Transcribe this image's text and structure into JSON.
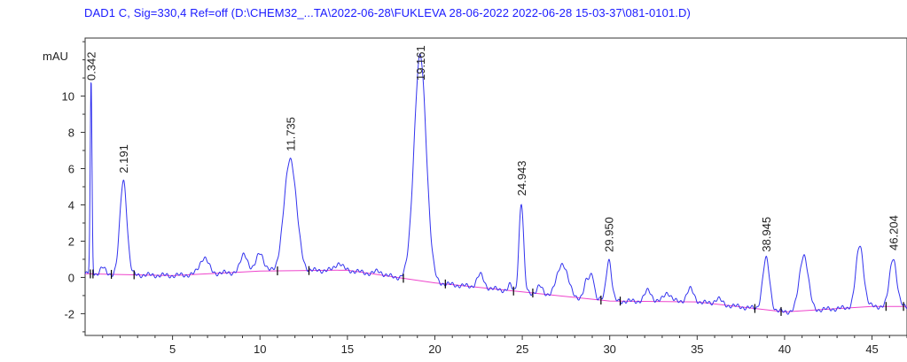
{
  "chart_data": {
    "type": "line",
    "title": "DAD1 C, Sig=330,4 Ref=off (D:\\CHEM32_...TA\\2022-06-28\\FUKLEVA  28-06-2022 2022-06-28 15-03-37\\081-0101.D)",
    "xlabel": "",
    "ylabel": "mAU",
    "xlim": [
      0,
      47
    ],
    "ylim": [
      -3.2,
      13.2
    ],
    "x_ticks": [
      5,
      10,
      15,
      20,
      25,
      30,
      35,
      40,
      45
    ],
    "y_ticks": [
      -2,
      0,
      2,
      4,
      6,
      8,
      10
    ],
    "grid": false,
    "line_color": "#3333ee",
    "baseline_color": "#ee44cc",
    "marker_color": "#000000",
    "label_color": "#222222",
    "baseline": {
      "x": [
        0,
        5,
        10,
        15,
        20,
        25,
        30,
        35,
        40,
        45,
        47
      ],
      "y": [
        0.2,
        0.1,
        0.35,
        0.4,
        -0.3,
        -0.8,
        -1.3,
        -1.35,
        -1.9,
        -1.6,
        -1.6
      ]
    },
    "peaks": [
      {
        "rt": 0.342,
        "label": "0.342",
        "height": 10.6,
        "width": 0.05
      },
      {
        "rt": 2.191,
        "label": "2.191",
        "height": 5.2,
        "width": 0.2
      },
      {
        "rt": 11.735,
        "label": "11.735",
        "height": 6.2,
        "width": 0.35
      },
      {
        "rt": 19.161,
        "label": "19.161",
        "height": 12.4,
        "width": 0.35
      },
      {
        "rt": 24.943,
        "label": "24.943",
        "height": 4.9,
        "width": 0.13
      },
      {
        "rt": 29.95,
        "label": "29.950",
        "height": 2.3,
        "width": 0.15
      },
      {
        "rt": 38.945,
        "label": "38.945",
        "height": 2.8,
        "width": 0.2
      },
      {
        "rt": 46.204,
        "label": "46.204",
        "height": 2.7,
        "width": 0.2
      }
    ],
    "minor_peaks": [
      {
        "rt": 1.0,
        "height": 0.35,
        "width": 0.15
      },
      {
        "rt": 6.8,
        "height": 0.9,
        "width": 0.25
      },
      {
        "rt": 9.1,
        "height": 1.0,
        "width": 0.2
      },
      {
        "rt": 10.0,
        "height": 1.05,
        "width": 0.2
      },
      {
        "rt": 14.5,
        "height": 0.4,
        "width": 0.2
      },
      {
        "rt": 16.8,
        "height": 0.2,
        "width": 0.2
      },
      {
        "rt": 22.6,
        "height": 0.7,
        "width": 0.2
      },
      {
        "rt": 24.3,
        "height": 0.3,
        "width": 0.1
      },
      {
        "rt": 26.0,
        "height": 0.4,
        "width": 0.15
      },
      {
        "rt": 27.3,
        "height": 1.8,
        "width": 0.3
      },
      {
        "rt": 28.7,
        "height": 1.0,
        "width": 0.15
      },
      {
        "rt": 29.0,
        "height": 1.3,
        "width": 0.12
      },
      {
        "rt": 32.2,
        "height": 0.6,
        "width": 0.2
      },
      {
        "rt": 33.3,
        "height": 0.5,
        "width": 0.2
      },
      {
        "rt": 34.6,
        "height": 0.7,
        "width": 0.2
      },
      {
        "rt": 36.2,
        "height": 0.3,
        "width": 0.2
      },
      {
        "rt": 41.1,
        "height": 3.1,
        "width": 0.25
      },
      {
        "rt": 44.3,
        "height": 3.4,
        "width": 0.22
      }
    ],
    "integration_marks": [
      0.3,
      0.45,
      1.5,
      2.8,
      11.0,
      12.8,
      18.2,
      20.6,
      24.5,
      25.6,
      29.5,
      30.6,
      38.3,
      39.8,
      45.8,
      46.8
    ]
  }
}
